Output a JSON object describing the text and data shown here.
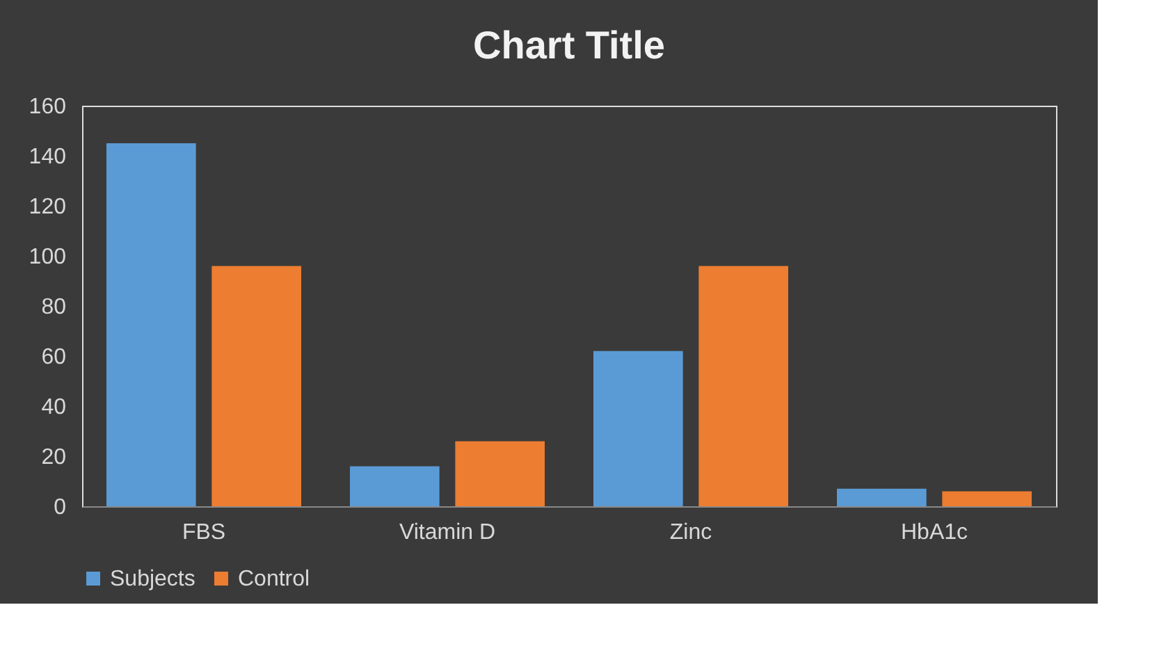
{
  "chart_data": {
    "type": "bar",
    "title": "Chart Title",
    "categories": [
      "FBS",
      "Vitamin D",
      "Zinc",
      "HbA1c"
    ],
    "series": [
      {
        "name": "Subjects",
        "color": "#5b9bd5",
        "values": [
          145,
          16,
          62,
          7
        ]
      },
      {
        "name": "Control",
        "color": "#ed7d31",
        "values": [
          96,
          26,
          96,
          6
        ]
      }
    ],
    "ylim": [
      0,
      160
    ],
    "yticks": [
      0,
      20,
      40,
      60,
      80,
      100,
      120,
      140,
      160
    ],
    "grid": false,
    "legend": "bottom"
  }
}
